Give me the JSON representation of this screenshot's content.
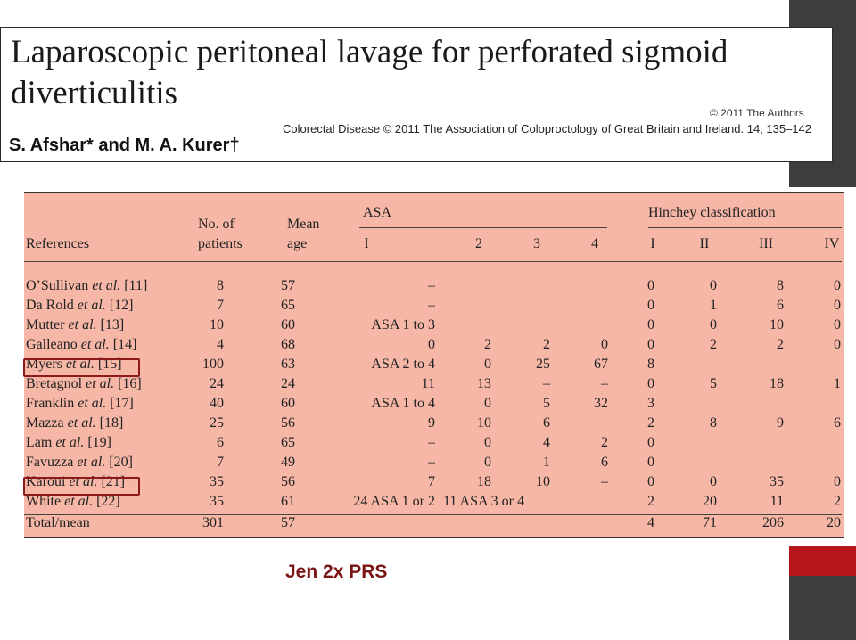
{
  "paper": {
    "title": "Laparoscopic peritoneal lavage for perforated sigmoid diverticulitis",
    "copyright": "© 2011 The Authors",
    "citation": "Colorectal Disease © 2011 The Association of Coloproctology of Great Britain and Ireland. 14, 135–142",
    "authors": "S. Afshar* and M. A. Kurer†"
  },
  "table": {
    "headers": {
      "references": "References",
      "patients_line1": "No. of",
      "patients_line2": "patients",
      "age_line1": "Mean",
      "age_line2": "age",
      "asa": "ASA",
      "asa_cols": [
        "I",
        "2",
        "3",
        "4"
      ],
      "hinchey": "Hinchey classification",
      "hinchey_cols": [
        "I",
        "II",
        "III",
        "IV"
      ]
    },
    "rows": [
      {
        "ref": "O’Sullivan et al. [11]",
        "n": "8",
        "age": "57",
        "asa1": "–",
        "asa2": "",
        "asa3": "",
        "asa4": "",
        "h1": "0",
        "h2": "0",
        "h3": "8",
        "h4": "0"
      },
      {
        "ref": "Da Rold et al. [12]",
        "n": "7",
        "age": "65",
        "asa1": "–",
        "asa2": "",
        "asa3": "",
        "asa4": "",
        "h1": "0",
        "h2": "1",
        "h3": "6",
        "h4": "0"
      },
      {
        "ref": "Mutter et al. [13]",
        "n": "10",
        "age": "60",
        "asa1": "ASA 1 to 3",
        "asa2": "",
        "asa3": "",
        "asa4": "",
        "h1": "0",
        "h2": "0",
        "h3": "10",
        "h4": "0"
      },
      {
        "ref": "Galleano et al. [14]",
        "n": "4",
        "age": "68",
        "asa1": "0",
        "asa2": "2",
        "asa3": "2",
        "asa4": "0",
        "h1": "0",
        "h2": "2",
        "h3": "2",
        "h4": "0"
      },
      {
        "ref": "Myers et al. [15]",
        "n": "100",
        "age": "63",
        "asa1": "ASA 2 to 4",
        "asa2": "0",
        "asa3": "25",
        "asa4": "67",
        "h1": "8",
        "h2": "",
        "h3": "",
        "h4": ""
      },
      {
        "ref": "Bretagnol et al. [16]",
        "n": "24",
        "age": "24",
        "asa1": "11",
        "asa2": "13",
        "asa3": "–",
        "asa4": "–",
        "h1": "0",
        "h2": "5",
        "h3": "18",
        "h4": "1"
      },
      {
        "ref": "Franklin et al. [17]",
        "n": "40",
        "age": "60",
        "asa1": "ASA 1 to 4",
        "asa2": "0",
        "asa3": "5",
        "asa4": "32",
        "h1": "3",
        "h2": "",
        "h3": "",
        "h4": ""
      },
      {
        "ref": "Mazza et al. [18]",
        "n": "25",
        "age": "56",
        "asa1": "9",
        "asa2": "10",
        "asa3": "6",
        "asa4": "",
        "h1": "2",
        "h2": "8",
        "h3": "9",
        "h4": "6"
      },
      {
        "ref": "Lam et al. [19]",
        "n": "6",
        "age": "65",
        "asa1": "–",
        "asa2": "0",
        "asa3": "4",
        "asa4": "2",
        "h1": "0",
        "h2": "",
        "h3": "",
        "h4": ""
      },
      {
        "ref": "Favuzza et al. [20]",
        "n": "7",
        "age": "49",
        "asa1": "–",
        "asa2": "0",
        "asa3": "1",
        "asa4": "6",
        "h1": "0",
        "h2": "",
        "h3": "",
        "h4": ""
      },
      {
        "ref": "Karoui et al. [21]",
        "n": "35",
        "age": "56",
        "asa1": "7",
        "asa2": "18",
        "asa3": "10",
        "asa4": "–",
        "h1": "0",
        "h2": "0",
        "h3": "35",
        "h4": "0"
      },
      {
        "ref": "White et al. [22]",
        "n": "35",
        "age": "61",
        "asa1": "24 ASA 1 or 2",
        "asa2": "11 ASA 3 or 4",
        "asa3": "",
        "asa4": "",
        "h1": "2",
        "h2": "20",
        "h3": "11",
        "h4": "2"
      },
      {
        "ref": "Total/mean",
        "n": "301",
        "age": "57",
        "asa1": "",
        "asa2": "",
        "asa3": "",
        "asa4": "",
        "h1": "4",
        "h2": "71",
        "h3": "206",
        "h4": "20"
      }
    ],
    "highlight_color": "#8b1a1a",
    "background_color": "#f6b7a7"
  },
  "caption": "Jen 2x PRS"
}
